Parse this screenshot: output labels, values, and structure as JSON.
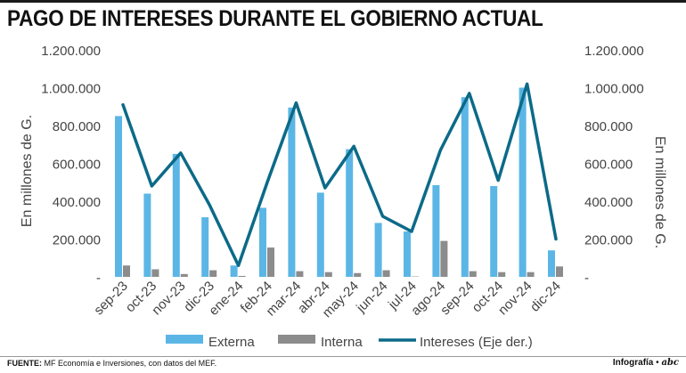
{
  "header": {
    "title": "PAGO DE INTERESES DURANTE EL GOBIERNO ACTUAL"
  },
  "footer": {
    "source_label": "FUENTE:",
    "source_text": "MF Economía e Inversiones, con datos del MEF.",
    "credit_label": "Infografía",
    "credit_logo": "abc"
  },
  "colors": {
    "externa": "#5bb6e6",
    "interna": "#8c8c8c",
    "intereses": "#0c6a88",
    "text": "#444444"
  },
  "chart_data": {
    "type": "bar",
    "categories": [
      "sep-23",
      "oct-23",
      "nov-23",
      "dic-23",
      "ene-24",
      "feb-24",
      "mar-24",
      "abr-24",
      "may-24",
      "jun-24",
      "jul-24",
      "ago-24",
      "sep-24",
      "oct-24",
      "nov-24",
      "dic-24"
    ],
    "series": [
      {
        "name": "Externa",
        "type": "bar",
        "axis": "left",
        "values": [
          850000,
          440000,
          650000,
          315000,
          60000,
          365000,
          895000,
          445000,
          675000,
          285000,
          240000,
          485000,
          950000,
          480000,
          1000000,
          140000
        ]
      },
      {
        "name": "Interna",
        "type": "bar",
        "axis": "left",
        "values": [
          60000,
          40000,
          15000,
          35000,
          5000,
          155000,
          30000,
          25000,
          20000,
          35000,
          2000,
          190000,
          30000,
          25000,
          25000,
          55000
        ]
      },
      {
        "name": "Intereses (Eje der.)",
        "type": "line",
        "axis": "right",
        "values": [
          910000,
          480000,
          655000,
          380000,
          60000,
          500000,
          920000,
          470000,
          690000,
          320000,
          240000,
          670000,
          970000,
          510000,
          1020000,
          200000
        ]
      }
    ],
    "ylabel_left": "En millones de G.",
    "ylabel_right": "En millones de G.",
    "ylim": [
      0,
      1200000
    ],
    "yticks": [
      0,
      200000,
      400000,
      600000,
      800000,
      1000000,
      1200000
    ],
    "ytick_labels": [
      "-",
      "200.000",
      "400.000",
      "600.000",
      "800.000",
      "1.000.000",
      "1.200.000"
    ],
    "legend": [
      "Externa",
      "Interna",
      "Intereses (Eje der.)"
    ],
    "legend_position": "bottom",
    "grid": false
  }
}
